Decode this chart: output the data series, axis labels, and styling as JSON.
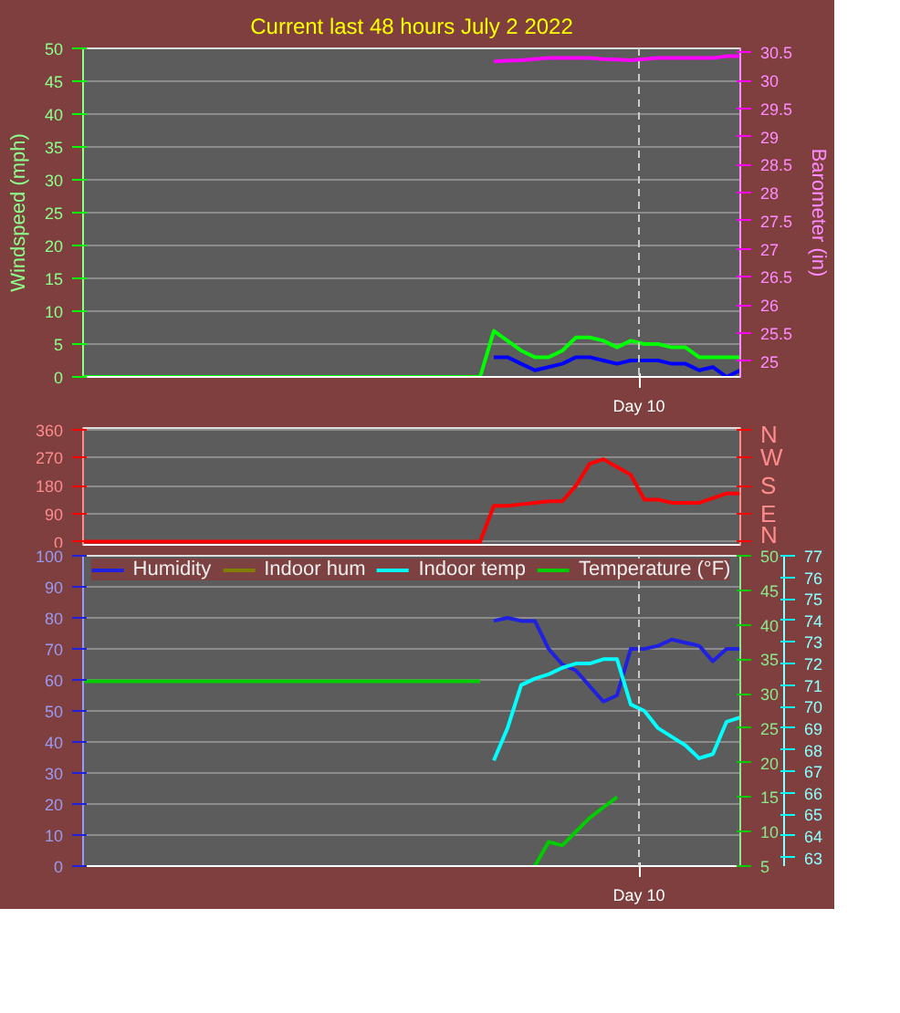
{
  "chart_data": [
    {
      "type": "line",
      "title": "Current last 48 hours July 2 2022",
      "ylabel": "Windspeed (mph)",
      "y2label": "Barometer (in)",
      "categories": [
        null,
        null,
        null,
        null,
        null,
        null,
        null,
        null,
        null,
        null,
        null,
        null,
        null,
        null,
        null,
        null,
        null,
        null,
        null,
        null,
        null,
        null,
        null,
        null,
        null,
        null,
        null,
        null,
        null,
        null,
        null,
        null,
        null,
        null,
        null,
        null,
        null,
        null,
        null,
        null,
        null,
        null,
        null,
        null,
        null,
        null,
        null,
        null,
        null
      ],
      "ylim": [
        0,
        50
      ],
      "yticks": [
        0,
        5,
        10,
        15,
        20,
        25,
        30,
        35,
        40,
        45,
        50
      ],
      "y2lim": [
        24.72,
        30.57
      ],
      "y2ticks": [
        25,
        25.5,
        26,
        26.5,
        27,
        27.5,
        28,
        28.5,
        29,
        29.5,
        30,
        30.5
      ],
      "grid": "y",
      "annotations": [
        "Day 10"
      ],
      "series": [
        {
          "color": "#00ff00",
          "values": [
            0,
            0,
            0,
            0,
            0,
            0,
            0,
            0,
            0,
            0,
            0,
            0,
            0,
            0,
            0,
            0,
            0,
            0,
            0,
            0,
            0,
            0,
            0,
            0,
            0,
            0,
            0,
            0,
            0,
            0,
            7,
            5.5,
            4,
            3,
            3,
            4,
            6,
            6,
            5.5,
            4.5,
            5.5,
            5,
            5,
            4.5,
            4.5,
            3,
            3,
            3,
            3
          ]
        },
        {
          "color": "#0000ff",
          "values": [
            null,
            null,
            null,
            null,
            null,
            null,
            null,
            null,
            null,
            null,
            null,
            null,
            null,
            null,
            null,
            null,
            null,
            null,
            null,
            null,
            null,
            null,
            null,
            null,
            null,
            null,
            null,
            null,
            null,
            null,
            3,
            3,
            2,
            1,
            1.5,
            2,
            3,
            3,
            2.5,
            2,
            2.5,
            2.5,
            2.5,
            2,
            2,
            1,
            1.5,
            0,
            1
          ]
        },
        {
          "color": "#ff00ff",
          "axis": "y2",
          "values": [
            null,
            null,
            null,
            null,
            null,
            null,
            null,
            null,
            null,
            null,
            null,
            null,
            null,
            null,
            null,
            null,
            null,
            null,
            null,
            null,
            null,
            null,
            null,
            null,
            null,
            null,
            null,
            null,
            null,
            null,
            30.34,
            30.35,
            30.36,
            30.38,
            30.4,
            30.4,
            30.4,
            30.4,
            30.38,
            30.37,
            30.36,
            30.38,
            30.4,
            30.4,
            30.4,
            30.4,
            30.4,
            30.43,
            30.43
          ]
        }
      ]
    },
    {
      "type": "line",
      "categories": [
        null,
        null,
        null,
        null,
        null,
        null,
        null,
        null,
        null,
        null,
        null,
        null,
        null,
        null,
        null,
        null,
        null,
        null,
        null,
        null,
        null,
        null,
        null,
        null,
        null,
        null,
        null,
        null,
        null,
        null,
        null,
        null,
        null,
        null,
        null,
        null,
        null,
        null,
        null,
        null,
        null,
        null,
        null,
        null,
        null,
        null,
        null,
        null,
        null
      ],
      "ylim": [
        -10,
        365
      ],
      "yticks": [
        0,
        90,
        180,
        270,
        360
      ],
      "annotations": [
        "N",
        "W",
        "S",
        "E",
        "N"
      ],
      "grid": "y",
      "series": [
        {
          "color": "#ff0000",
          "values": [
            0,
            0,
            0,
            0,
            0,
            0,
            0,
            0,
            0,
            0,
            0,
            0,
            0,
            0,
            0,
            0,
            0,
            0,
            0,
            0,
            0,
            0,
            0,
            0,
            0,
            0,
            0,
            0,
            0,
            0,
            115,
            115,
            120,
            125,
            130,
            130,
            180,
            250,
            265,
            240,
            215,
            135,
            135,
            125,
            125,
            125,
            140,
            155,
            155
          ]
        }
      ]
    },
    {
      "type": "line",
      "categories": [
        null,
        null,
        null,
        null,
        null,
        null,
        null,
        null,
        null,
        null,
        null,
        null,
        null,
        null,
        null,
        null,
        null,
        null,
        null,
        null,
        null,
        null,
        null,
        null,
        null,
        null,
        null,
        null,
        null,
        null,
        null,
        null,
        null,
        null,
        null,
        null,
        null,
        null,
        null,
        null,
        null,
        null,
        null,
        null,
        null,
        null,
        null,
        null,
        null
      ],
      "ylim": [
        0,
        100
      ],
      "yticks": [
        0,
        10,
        20,
        30,
        40,
        50,
        60,
        70,
        80,
        90,
        100
      ],
      "y2lim": [
        5,
        50
      ],
      "y2ticks": [
        5,
        10,
        15,
        20,
        25,
        30,
        35,
        40,
        45,
        50
      ],
      "y3lim": [
        62.6,
        77
      ],
      "y3ticks": [
        63,
        64,
        65,
        66,
        67,
        68,
        69,
        70,
        71,
        72,
        73,
        74,
        75,
        76,
        77
      ],
      "grid": "y",
      "legend": "top",
      "annotations": [
        "Day 10"
      ],
      "series": [
        {
          "name": "Humidity",
          "color": "#2020e0",
          "values": [
            null,
            null,
            null,
            null,
            null,
            null,
            null,
            null,
            null,
            null,
            null,
            null,
            null,
            null,
            null,
            null,
            null,
            null,
            null,
            null,
            null,
            null,
            null,
            null,
            null,
            null,
            null,
            null,
            null,
            null,
            79,
            80,
            79,
            79,
            70,
            65,
            63,
            58,
            53,
            55,
            70,
            70,
            71,
            73,
            72,
            71,
            66,
            70,
            70
          ]
        },
        {
          "name": "Indoor hum",
          "color": "#808000",
          "values": [
            null,
            null,
            null,
            null,
            null,
            null,
            null,
            null,
            null,
            null,
            null,
            null,
            null,
            null,
            null,
            null,
            null,
            null,
            null,
            null,
            null,
            null,
            null,
            null,
            null,
            null,
            null,
            null,
            null,
            null,
            null,
            null,
            null,
            null,
            null,
            null,
            null,
            null,
            null,
            null,
            null,
            null,
            null,
            null,
            null,
            null,
            null,
            null,
            null
          ]
        },
        {
          "name": "Indoor temp",
          "color": "#00ffff",
          "axis": "y3",
          "values": [
            null,
            null,
            null,
            null,
            null,
            null,
            null,
            null,
            null,
            null,
            null,
            null,
            null,
            null,
            null,
            null,
            null,
            null,
            null,
            null,
            null,
            null,
            null,
            null,
            null,
            null,
            null,
            null,
            null,
            null,
            67.5,
            69,
            71,
            71.3,
            71.5,
            71.8,
            72,
            72,
            72.2,
            72.2,
            70.1,
            69.8,
            69,
            68.6,
            68.2,
            67.6,
            67.8,
            69.3,
            69.5
          ]
        },
        {
          "name": "Temperature (°F)",
          "color": "#00cc00",
          "axis": "y2",
          "values": [
            31.8,
            31.8,
            31.8,
            31.8,
            31.8,
            31.8,
            31.8,
            31.8,
            31.8,
            31.8,
            31.8,
            31.8,
            31.8,
            31.8,
            31.8,
            31.8,
            31.8,
            31.8,
            31.8,
            31.8,
            31.8,
            31.8,
            31.8,
            31.8,
            31.8,
            31.8,
            31.8,
            31.8,
            31.8,
            31.8,
            null,
            null,
            null,
            5,
            8.5,
            8,
            10,
            12,
            13.5,
            15,
            null,
            null,
            null,
            null,
            null,
            null,
            null,
            null,
            null
          ]
        }
      ]
    }
  ]
}
